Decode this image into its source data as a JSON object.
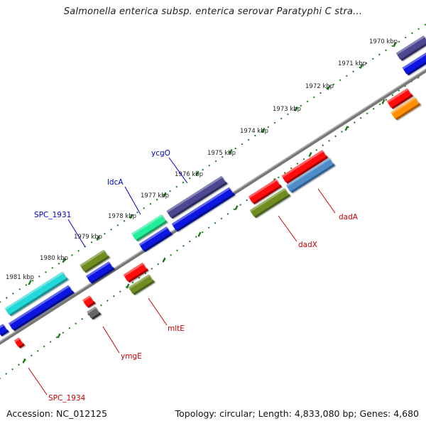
{
  "title": "Salmonella enterica subsp. enterica serovar Paratyphi C stra...",
  "footer": {
    "accession": "Accession: NC_012125",
    "summary": "Topology: circular; Length: 4,833,080 bp; Genes: 4,680"
  },
  "colors": {
    "backbone": "#8a8a8a",
    "tick": "#1a7a1a",
    "label_forward": "#0000cc",
    "label_reverse": "#cc0000"
  },
  "ticks": [
    "1970 kbp",
    "1971 kbp",
    "1972 kbp",
    "1973 kbp",
    "1974 kbp",
    "1975 kbp",
    "1976 kbp",
    "1977 kbp",
    "1978 kbp",
    "1979 kbp",
    "1980 kbp",
    "1981 kbp"
  ],
  "gene_labels": [
    {
      "text": "ycgO",
      "strand": "forward"
    },
    {
      "text": "ldcA",
      "strand": "forward"
    },
    {
      "text": "SPC_1931",
      "strand": "forward"
    },
    {
      "text": "dadA",
      "strand": "reverse"
    },
    {
      "text": "dadX",
      "strand": "reverse"
    },
    {
      "text": "mltE",
      "strand": "reverse"
    },
    {
      "text": "ymgE",
      "strand": "reverse"
    },
    {
      "text": "SPC_1934",
      "strand": "reverse"
    }
  ]
}
